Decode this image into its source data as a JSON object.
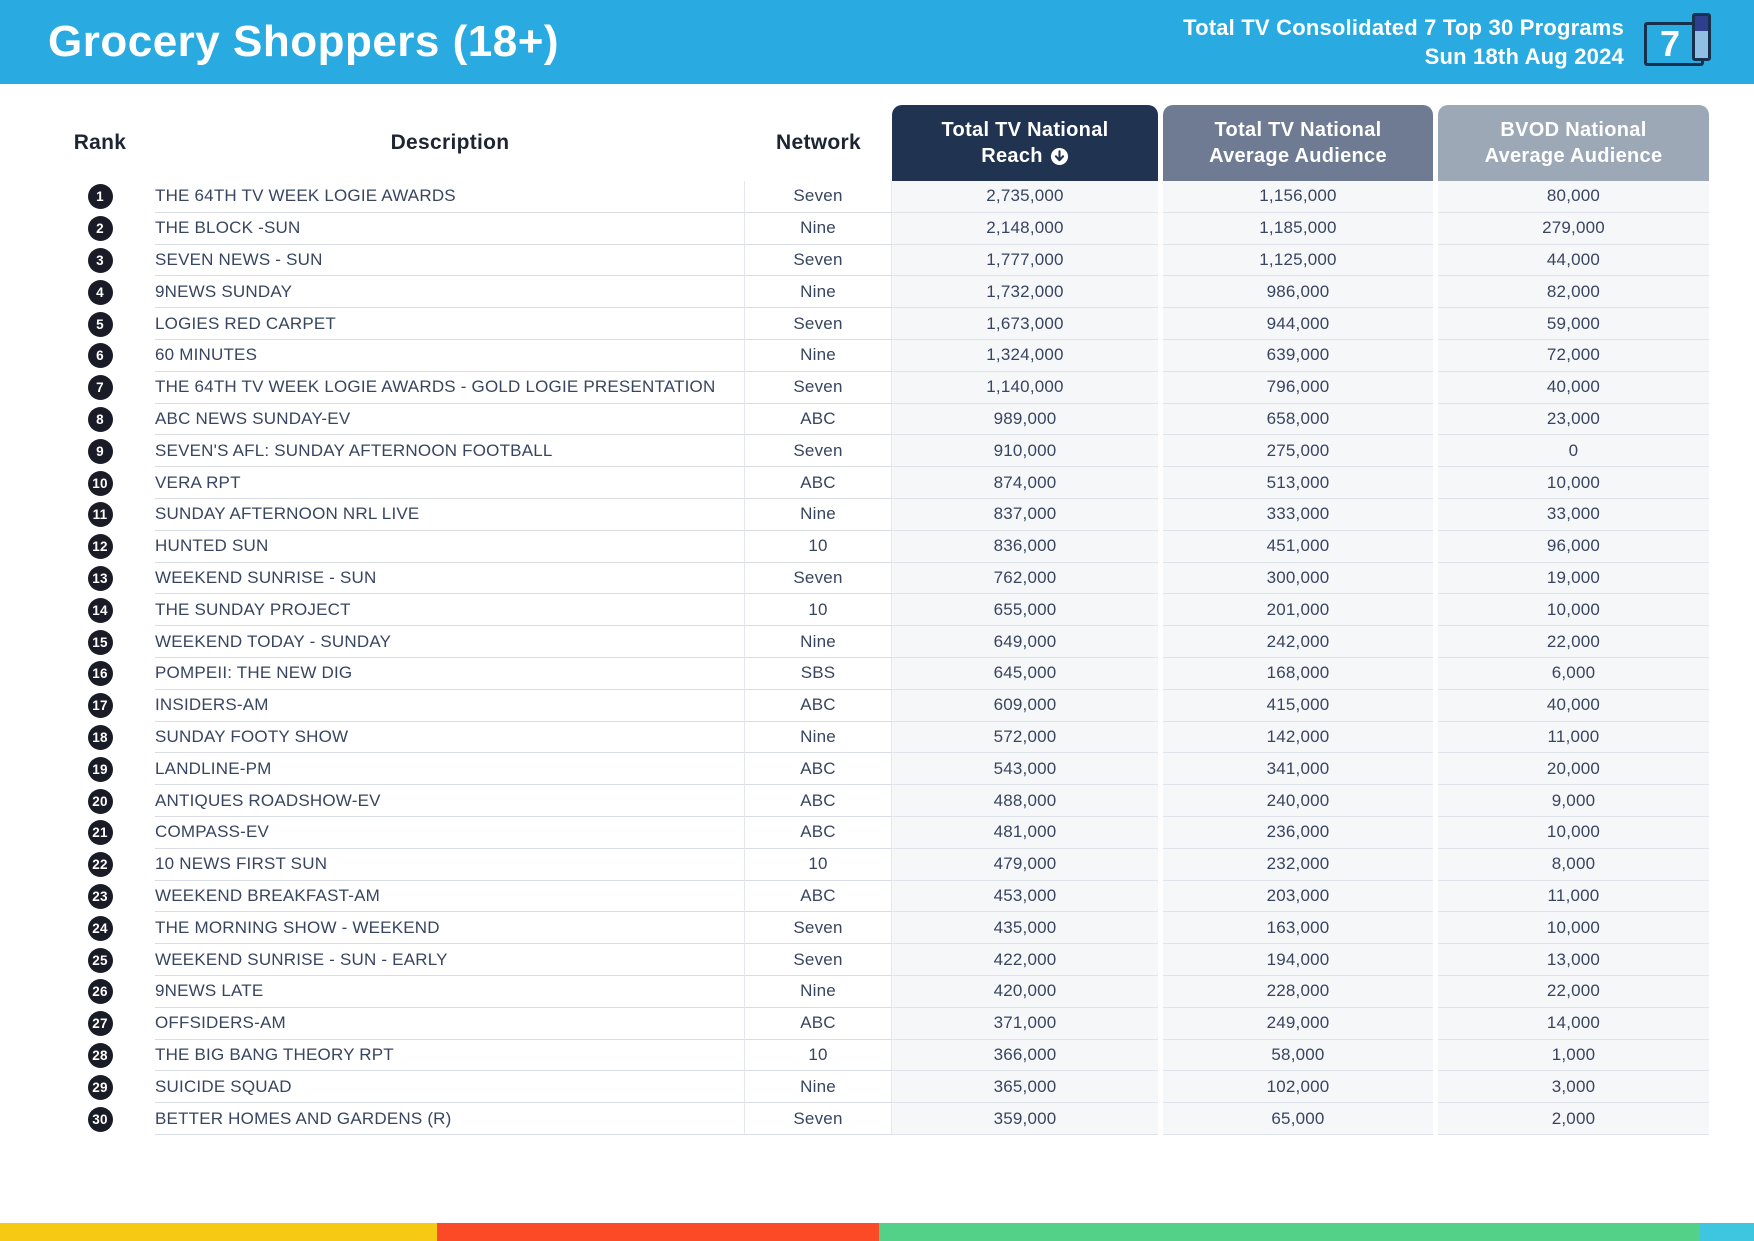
{
  "header": {
    "title": "Grocery Shoppers (18+)",
    "subtitle_line1": "Total TV Consolidated 7 Top 30 Programs",
    "subtitle_line2": "Sun 18th Aug 2024",
    "logo_text": "7",
    "banner_color": "#29ABE2"
  },
  "table": {
    "columns": {
      "rank": "Rank",
      "description": "Description",
      "network": "Network",
      "reach_line1": "Total TV National",
      "reach_line2": "Reach",
      "avg_line1": "Total TV National",
      "avg_line2": "Average Audience",
      "bvod_line1": "BVOD National",
      "bvod_line2": "Average Audience"
    },
    "header_colors": {
      "reach_bg": "#203350",
      "avg_bg": "#6E7B93",
      "bvod_bg": "#9DA8B7"
    },
    "sort": {
      "column": "reach",
      "direction": "desc",
      "icon": "arrow-down-circle"
    },
    "rows": [
      {
        "rank": "1",
        "description": "THE 64TH TV WEEK LOGIE AWARDS",
        "network": "Seven",
        "reach": "2,735,000",
        "avg_audience": "1,156,000",
        "bvod": "80,000"
      },
      {
        "rank": "2",
        "description": "THE BLOCK -SUN",
        "network": "Nine",
        "reach": "2,148,000",
        "avg_audience": "1,185,000",
        "bvod": "279,000"
      },
      {
        "rank": "3",
        "description": "SEVEN NEWS - SUN",
        "network": "Seven",
        "reach": "1,777,000",
        "avg_audience": "1,125,000",
        "bvod": "44,000"
      },
      {
        "rank": "4",
        "description": "9NEWS SUNDAY",
        "network": "Nine",
        "reach": "1,732,000",
        "avg_audience": "986,000",
        "bvod": "82,000"
      },
      {
        "rank": "5",
        "description": "LOGIES RED CARPET",
        "network": "Seven",
        "reach": "1,673,000",
        "avg_audience": "944,000",
        "bvod": "59,000"
      },
      {
        "rank": "6",
        "description": "60 MINUTES",
        "network": "Nine",
        "reach": "1,324,000",
        "avg_audience": "639,000",
        "bvod": "72,000"
      },
      {
        "rank": "7",
        "description": "THE 64TH TV WEEK LOGIE AWARDS - GOLD LOGIE PRESENTATION",
        "network": "Seven",
        "reach": "1,140,000",
        "avg_audience": "796,000",
        "bvod": "40,000"
      },
      {
        "rank": "8",
        "description": "ABC NEWS SUNDAY-EV",
        "network": "ABC",
        "reach": "989,000",
        "avg_audience": "658,000",
        "bvod": "23,000"
      },
      {
        "rank": "9",
        "description": "SEVEN'S AFL: SUNDAY AFTERNOON FOOTBALL",
        "network": "Seven",
        "reach": "910,000",
        "avg_audience": "275,000",
        "bvod": "0"
      },
      {
        "rank": "10",
        "description": "VERA RPT",
        "network": "ABC",
        "reach": "874,000",
        "avg_audience": "513,000",
        "bvod": "10,000"
      },
      {
        "rank": "11",
        "description": "SUNDAY AFTERNOON NRL LIVE",
        "network": "Nine",
        "reach": "837,000",
        "avg_audience": "333,000",
        "bvod": "33,000"
      },
      {
        "rank": "12",
        "description": "HUNTED SUN",
        "network": "10",
        "reach": "836,000",
        "avg_audience": "451,000",
        "bvod": "96,000"
      },
      {
        "rank": "13",
        "description": "WEEKEND SUNRISE - SUN",
        "network": "Seven",
        "reach": "762,000",
        "avg_audience": "300,000",
        "bvod": "19,000"
      },
      {
        "rank": "14",
        "description": "THE SUNDAY PROJECT",
        "network": "10",
        "reach": "655,000",
        "avg_audience": "201,000",
        "bvod": "10,000"
      },
      {
        "rank": "15",
        "description": "WEEKEND TODAY - SUNDAY",
        "network": "Nine",
        "reach": "649,000",
        "avg_audience": "242,000",
        "bvod": "22,000"
      },
      {
        "rank": "16",
        "description": "POMPEII: THE NEW DIG",
        "network": "SBS",
        "reach": "645,000",
        "avg_audience": "168,000",
        "bvod": "6,000"
      },
      {
        "rank": "17",
        "description": "INSIDERS-AM",
        "network": "ABC",
        "reach": "609,000",
        "avg_audience": "415,000",
        "bvod": "40,000"
      },
      {
        "rank": "18",
        "description": "SUNDAY FOOTY SHOW",
        "network": "Nine",
        "reach": "572,000",
        "avg_audience": "142,000",
        "bvod": "11,000"
      },
      {
        "rank": "19",
        "description": "LANDLINE-PM",
        "network": "ABC",
        "reach": "543,000",
        "avg_audience": "341,000",
        "bvod": "20,000"
      },
      {
        "rank": "20",
        "description": "ANTIQUES ROADSHOW-EV",
        "network": "ABC",
        "reach": "488,000",
        "avg_audience": "240,000",
        "bvod": "9,000"
      },
      {
        "rank": "21",
        "description": "COMPASS-EV",
        "network": "ABC",
        "reach": "481,000",
        "avg_audience": "236,000",
        "bvod": "10,000"
      },
      {
        "rank": "22",
        "description": "10 NEWS FIRST SUN",
        "network": "10",
        "reach": "479,000",
        "avg_audience": "232,000",
        "bvod": "8,000"
      },
      {
        "rank": "23",
        "description": "WEEKEND BREAKFAST-AM",
        "network": "ABC",
        "reach": "453,000",
        "avg_audience": "203,000",
        "bvod": "11,000"
      },
      {
        "rank": "24",
        "description": "THE MORNING SHOW - WEEKEND",
        "network": "Seven",
        "reach": "435,000",
        "avg_audience": "163,000",
        "bvod": "10,000"
      },
      {
        "rank": "25",
        "description": "WEEKEND SUNRISE - SUN - EARLY",
        "network": "Seven",
        "reach": "422,000",
        "avg_audience": "194,000",
        "bvod": "13,000"
      },
      {
        "rank": "26",
        "description": "9NEWS LATE",
        "network": "Nine",
        "reach": "420,000",
        "avg_audience": "228,000",
        "bvod": "22,000"
      },
      {
        "rank": "27",
        "description": "OFFSIDERS-AM",
        "network": "ABC",
        "reach": "371,000",
        "avg_audience": "249,000",
        "bvod": "14,000"
      },
      {
        "rank": "28",
        "description": "THE BIG BANG THEORY RPT",
        "network": "10",
        "reach": "366,000",
        "avg_audience": "58,000",
        "bvod": "1,000"
      },
      {
        "rank": "29",
        "description": "SUICIDE SQUAD",
        "network": "Nine",
        "reach": "365,000",
        "avg_audience": "102,000",
        "bvod": "3,000"
      },
      {
        "rank": "30",
        "description": "BETTER HOMES AND GARDENS (R)",
        "network": "Seven",
        "reach": "359,000",
        "avg_audience": "65,000",
        "bvod": "2,000"
      }
    ]
  },
  "footer": {
    "segments": [
      {
        "name": "yellow",
        "color": "#F6C915",
        "width_pct": 24.9
      },
      {
        "name": "red",
        "color": "#FB4B26",
        "width_pct": 25.2
      },
      {
        "name": "green",
        "color": "#54D188",
        "width_pct": 46.8
      },
      {
        "name": "cyan",
        "color": "#3EC6E0",
        "width_pct": 3.1
      }
    ]
  }
}
